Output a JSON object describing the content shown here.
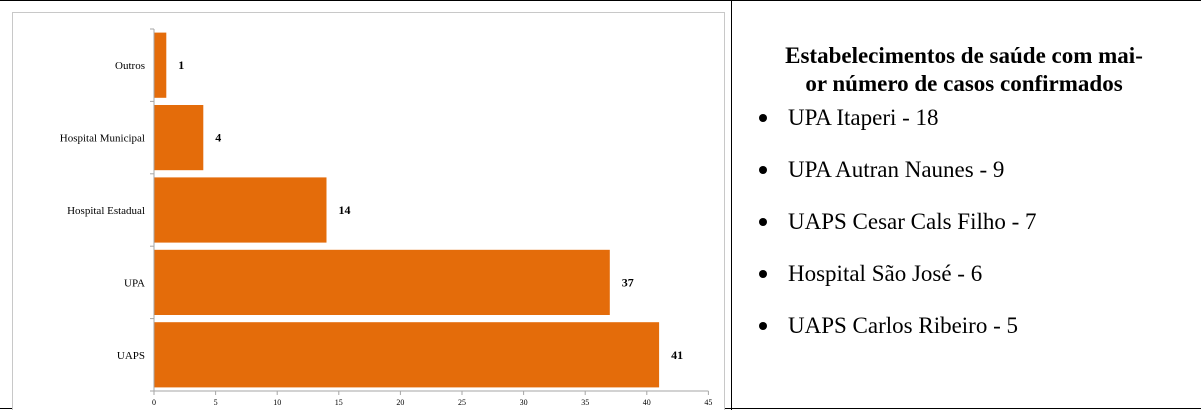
{
  "colors": {
    "bar": "#e46c0a",
    "axis": "#a6a6a6",
    "text": "#000000"
  },
  "chart_data": {
    "type": "bar",
    "orientation": "horizontal",
    "title": "",
    "xlabel": "",
    "ylabel": "",
    "categories": [
      "Outros",
      "Hospital Municipal",
      "Hospital Estadual",
      "UPA",
      "UAPS"
    ],
    "values": [
      1,
      4,
      14,
      37,
      41
    ],
    "xlim": [
      0,
      45
    ],
    "xticks": [
      0,
      5,
      10,
      15,
      20,
      25,
      30,
      35,
      40,
      45
    ],
    "grid": false,
    "data_labels": true
  },
  "info": {
    "title_line1": "Estabelecimentos de saúde com mai-",
    "title_line2": "or número de casos confirmados",
    "items": [
      "UPA Itaperi - 18",
      "UPA Autran Naunes - 9",
      "UAPS Cesar Cals Filho - 7",
      "Hospital São José - 6",
      "UAPS Carlos Ribeiro - 5"
    ]
  }
}
